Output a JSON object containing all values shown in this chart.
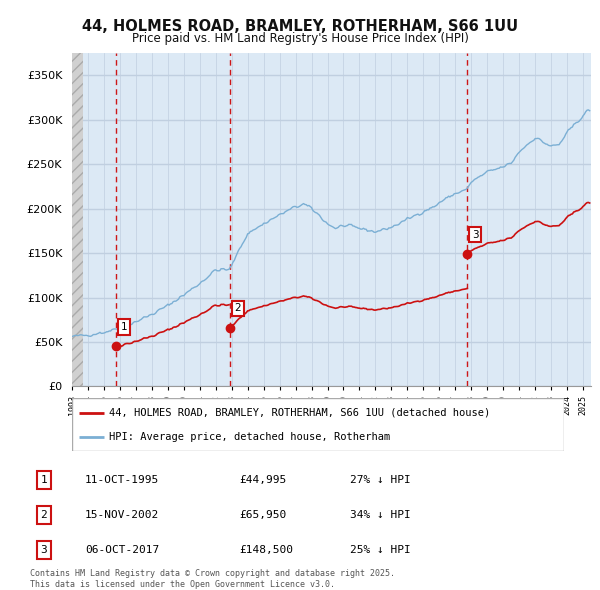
{
  "title_line1": "44, HOLMES ROAD, BRAMLEY, ROTHERHAM, S66 1UU",
  "title_line2": "Price paid vs. HM Land Registry's House Price Index (HPI)",
  "ylim": [
    0,
    375000
  ],
  "yticks": [
    0,
    50000,
    100000,
    150000,
    200000,
    250000,
    300000,
    350000
  ],
  "ytick_labels": [
    "£0",
    "£50K",
    "£100K",
    "£150K",
    "£200K",
    "£250K",
    "£300K",
    "£350K"
  ],
  "background_color": "#ffffff",
  "plot_bg_color": "#dce9f5",
  "hatch_bg_color": "#e0e0e0",
  "hpi_color": "#7bafd4",
  "price_color": "#cc1111",
  "vline_color": "#cc0000",
  "grid_color": "#c0cfe0",
  "sale_points": [
    {
      "date_num": 1995.78,
      "price": 44995,
      "label": "1"
    },
    {
      "date_num": 2002.88,
      "price": 65950,
      "label": "2"
    },
    {
      "date_num": 2017.76,
      "price": 148500,
      "label": "3"
    }
  ],
  "legend_entries": [
    {
      "label": "44, HOLMES ROAD, BRAMLEY, ROTHERHAM, S66 1UU (detached house)",
      "color": "#cc1111"
    },
    {
      "label": "HPI: Average price, detached house, Rotherham",
      "color": "#7bafd4"
    }
  ],
  "table_rows": [
    {
      "num": "1",
      "date": "11-OCT-1995",
      "price": "£44,995",
      "hpi": "27% ↓ HPI"
    },
    {
      "num": "2",
      "date": "15-NOV-2002",
      "price": "£65,950",
      "hpi": "34% ↓ HPI"
    },
    {
      "num": "3",
      "date": "06-OCT-2017",
      "price": "£148,500",
      "hpi": "25% ↓ HPI"
    }
  ],
  "footer": "Contains HM Land Registry data © Crown copyright and database right 2025.\nThis data is licensed under the Open Government Licence v3.0.",
  "xmin": 1993.0,
  "xmax": 2025.5
}
